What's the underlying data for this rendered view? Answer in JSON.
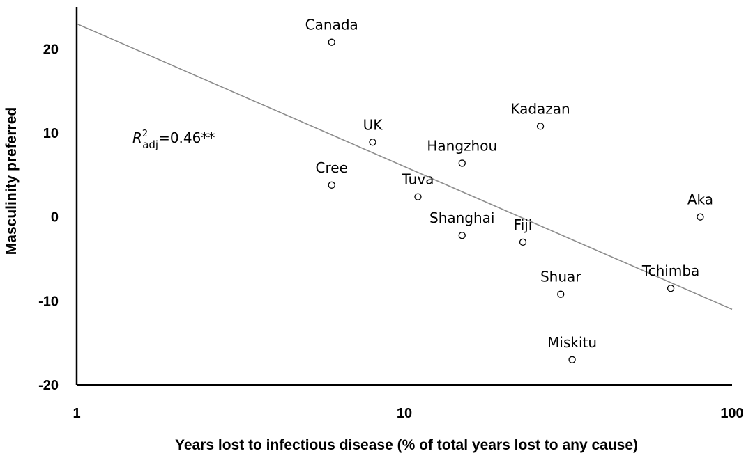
{
  "chart_data": {
    "type": "scatter",
    "x_scale": "log",
    "xlim": [
      1,
      100
    ],
    "ylim": [
      -20,
      25
    ],
    "xlabel": "Years lost to infectious disease (% of total years lost to any cause)",
    "ylabel": "Masculinity preferred",
    "x_ticks": [
      {
        "value": 1,
        "label": "1"
      },
      {
        "value": 10,
        "label": "10"
      },
      {
        "value": 100,
        "label": "100"
      }
    ],
    "y_ticks": [
      {
        "value": 20,
        "label": "20"
      },
      {
        "value": 10,
        "label": "10"
      },
      {
        "value": 0,
        "label": "0"
      },
      {
        "value": -10,
        "label": "-10"
      },
      {
        "value": -20,
        "label": "-20"
      }
    ],
    "grid": false,
    "legend": "none",
    "points": [
      {
        "label": "Canada",
        "x": 6.0,
        "y": 20.8
      },
      {
        "label": "UK",
        "x": 8.0,
        "y": 8.9
      },
      {
        "label": "Cree",
        "x": 6.0,
        "y": 3.8
      },
      {
        "label": "Tuva",
        "x": 11.0,
        "y": 2.4
      },
      {
        "label": "Hangzhou",
        "x": 15.0,
        "y": 6.4
      },
      {
        "label": "Kadazan",
        "x": 26.0,
        "y": 10.8
      },
      {
        "label": "Shanghai",
        "x": 15.0,
        "y": -2.2
      },
      {
        "label": "Fiji",
        "x": 23.0,
        "y": -3.0
      },
      {
        "label": "Aka",
        "x": 80.0,
        "y": 0.0
      },
      {
        "label": "Tchimba",
        "x": 65.0,
        "y": -8.5
      },
      {
        "label": "Shuar",
        "x": 30.0,
        "y": -9.2
      },
      {
        "label": "Miskitu",
        "x": 32.5,
        "y": -17.0
      }
    ],
    "trendline": {
      "x": [
        1,
        100
      ],
      "y": [
        23.0,
        -11.0
      ]
    },
    "annotation": {
      "r_symbol": "R",
      "superscript": "2",
      "subscript": "adj",
      "value_text": "=0.46**"
    },
    "colors": {
      "marker": "#000000",
      "marker_fill": "#ffffff",
      "trendline": "#8c8c8c",
      "axis": "#000000"
    }
  }
}
